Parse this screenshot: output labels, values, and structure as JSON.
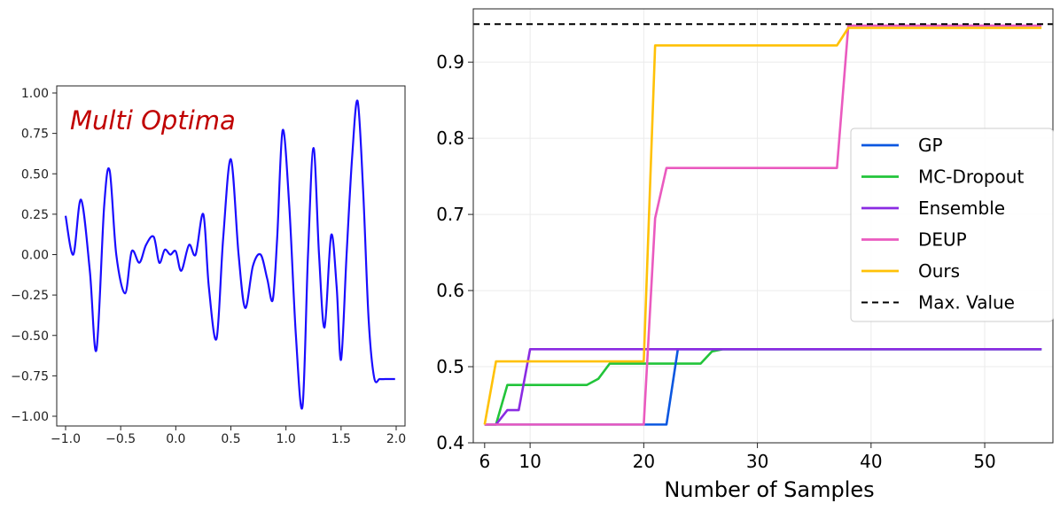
{
  "chart_data": [
    {
      "type": "line",
      "annotation": "Multi Optima",
      "annotation_color": "#c00000",
      "xlim": [
        -1.0,
        2.0
      ],
      "ylim": [
        -1.0,
        1.0
      ],
      "xticks": [
        "−1.0",
        "−0.5",
        "0.0",
        "0.5",
        "1.0",
        "1.5",
        "2.0"
      ],
      "yticks": [
        "1.00",
        "0.75",
        "0.50",
        "0.25",
        "0.00",
        "−0.25",
        "−0.50",
        "−0.75",
        "−1.00"
      ],
      "grid": false,
      "series": [
        {
          "color": "#1a0dff",
          "x": [
            -1.0,
            -0.93,
            -0.86,
            -0.78,
            -0.72,
            -0.65,
            -0.6,
            -0.54,
            -0.46,
            -0.4,
            -0.33,
            -0.27,
            -0.2,
            -0.15,
            -0.1,
            -0.05,
            0.0,
            0.05,
            0.12,
            0.18,
            0.25,
            0.3,
            0.37,
            0.43,
            0.5,
            0.57,
            0.63,
            0.7,
            0.77,
            0.83,
            0.88,
            0.92,
            0.97,
            1.03,
            1.09,
            1.15,
            1.2,
            1.25,
            1.3,
            1.35,
            1.41,
            1.46,
            1.5,
            1.55,
            1.6,
            1.65,
            1.7,
            1.75,
            1.8,
            1.85,
            1.9,
            1.95,
            1.99
          ],
          "y": [
            0.24,
            0.0,
            0.34,
            -0.1,
            -0.59,
            0.3,
            0.52,
            0.0,
            -0.24,
            0.02,
            -0.05,
            0.06,
            0.11,
            -0.05,
            0.03,
            0.0,
            0.02,
            -0.1,
            0.06,
            0.0,
            0.25,
            -0.2,
            -0.52,
            0.1,
            0.59,
            0.0,
            -0.33,
            -0.07,
            0.0,
            -0.15,
            -0.28,
            0.1,
            0.77,
            0.3,
            -0.5,
            -0.94,
            0.0,
            0.66,
            0.0,
            -0.45,
            0.12,
            -0.2,
            -0.65,
            0.0,
            0.6,
            0.95,
            0.4,
            -0.4,
            -0.76,
            -0.77,
            -0.77,
            -0.77,
            -0.77
          ]
        }
      ]
    },
    {
      "type": "line",
      "xlabel": "Number of Samples",
      "xlim": [
        5,
        56
      ],
      "ylim": [
        0.4,
        0.97
      ],
      "xticks": [
        6,
        10,
        20,
        30,
        40,
        50
      ],
      "yticks": [
        0.4,
        0.5,
        0.6,
        0.7,
        0.8,
        0.9
      ],
      "grid": true,
      "legend": "center-right",
      "max_value": 0.95,
      "series": [
        {
          "name": "GP",
          "color": "#0b57e0",
          "x": [
            6,
            22,
            23,
            55
          ],
          "y": [
            0.424,
            0.424,
            0.523,
            0.523
          ]
        },
        {
          "name": "MC-Dropout",
          "color": "#22c43a",
          "x": [
            6,
            7,
            8,
            15,
            16,
            17,
            25,
            26,
            27,
            55
          ],
          "y": [
            0.424,
            0.424,
            0.476,
            0.476,
            0.484,
            0.504,
            0.504,
            0.52,
            0.523,
            0.523
          ]
        },
        {
          "name": "Ensemble",
          "color": "#8a2be2",
          "x": [
            6,
            7,
            8,
            9,
            10,
            55
          ],
          "y": [
            0.424,
            0.424,
            0.443,
            0.443,
            0.523,
            0.523
          ]
        },
        {
          "name": "DEUP",
          "color": "#ea5abf",
          "x": [
            6,
            20,
            21,
            22,
            37,
            38,
            55
          ],
          "y": [
            0.424,
            0.424,
            0.695,
            0.761,
            0.761,
            0.948,
            0.948
          ]
        },
        {
          "name": "Ours",
          "color": "#ffc107",
          "x": [
            6,
            7,
            20,
            21,
            37,
            38,
            55
          ],
          "y": [
            0.424,
            0.507,
            0.507,
            0.922,
            0.922,
            0.945,
            0.945
          ]
        },
        {
          "name": "Max. Value",
          "color": "#000000",
          "dashed": true
        }
      ]
    }
  ]
}
